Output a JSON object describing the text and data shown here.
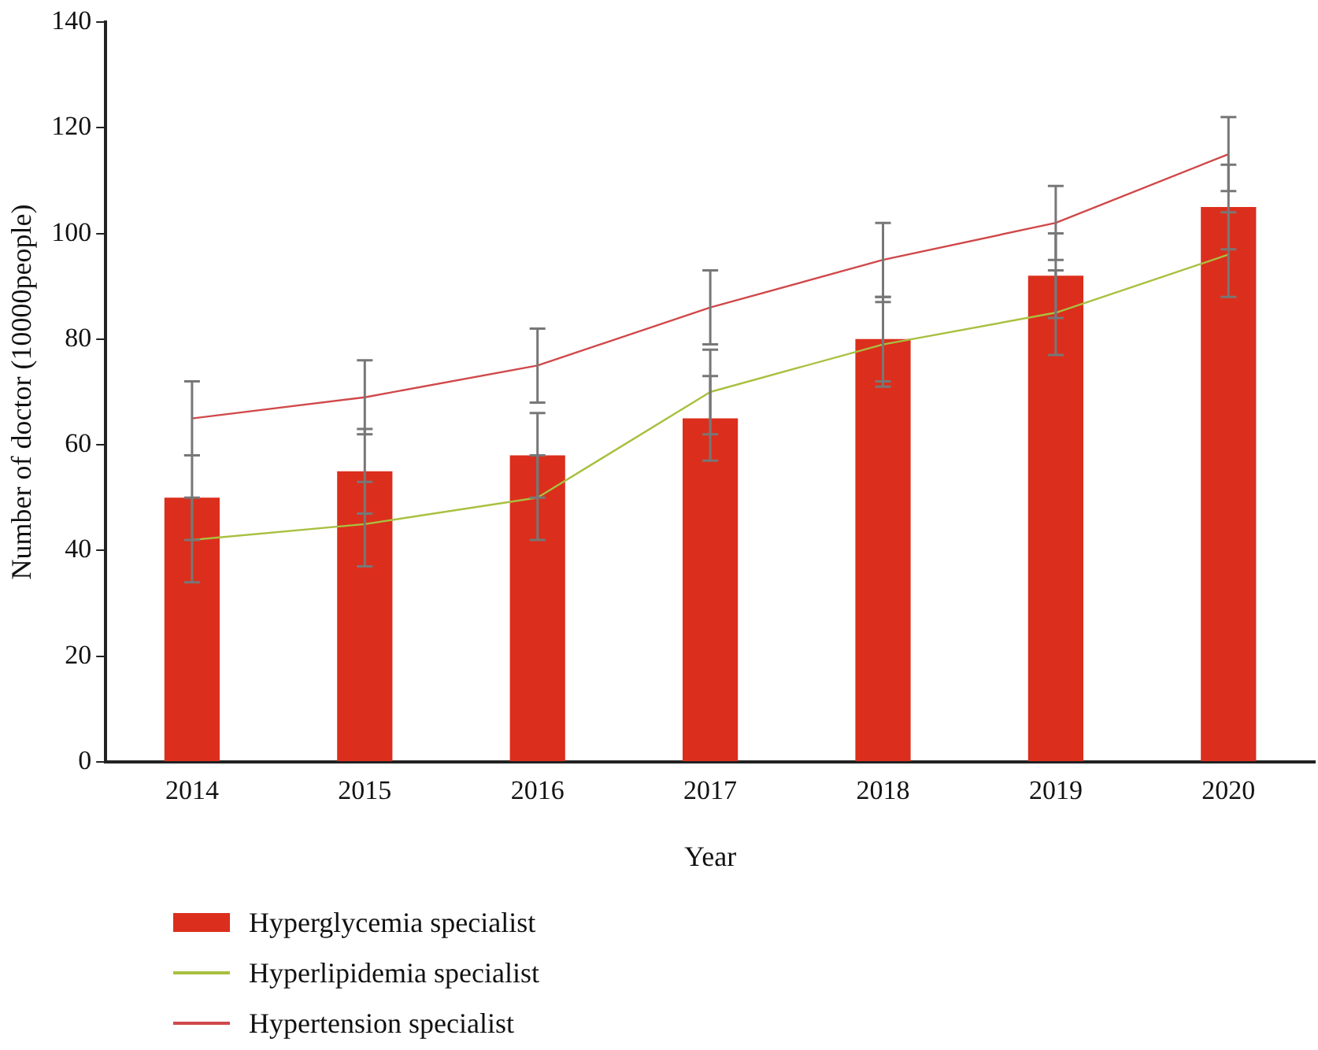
{
  "chart_data": {
    "type": "bar",
    "xlabel": "Year",
    "ylabel": "Number of doctor (10000people)",
    "categories": [
      "2014",
      "2015",
      "2016",
      "2017",
      "2018",
      "2019",
      "2020"
    ],
    "series": [
      {
        "name": "Hyperglycemia specialist",
        "color": "#dc2e1c",
        "values": [
          50,
          55,
          58,
          65,
          80,
          92,
          105
        ],
        "errors": [
          8,
          8,
          8,
          8,
          8,
          8,
          8
        ]
      },
      {
        "name": "Hyperlipidemia specialist",
        "type": "line",
        "color": "#a8c040",
        "values": [
          42,
          45,
          50,
          70,
          79,
          85,
          96
        ],
        "errors": [
          8,
          8,
          8,
          8,
          8,
          8,
          8
        ]
      },
      {
        "name": "Hypertension specialist",
        "type": "line",
        "color": "#d0484a",
        "values": [
          65,
          69,
          75,
          86,
          95,
          102,
          115
        ],
        "errors": [
          7,
          7,
          7,
          7,
          7,
          7,
          7
        ]
      }
    ],
    "ylim": [
      0,
      140
    ],
    "yticks": [
      0,
      20,
      40,
      60,
      80,
      100,
      120,
      140
    ],
    "grid": false,
    "legend": "bottom left",
    "marker": "none",
    "line_style": "solid"
  }
}
